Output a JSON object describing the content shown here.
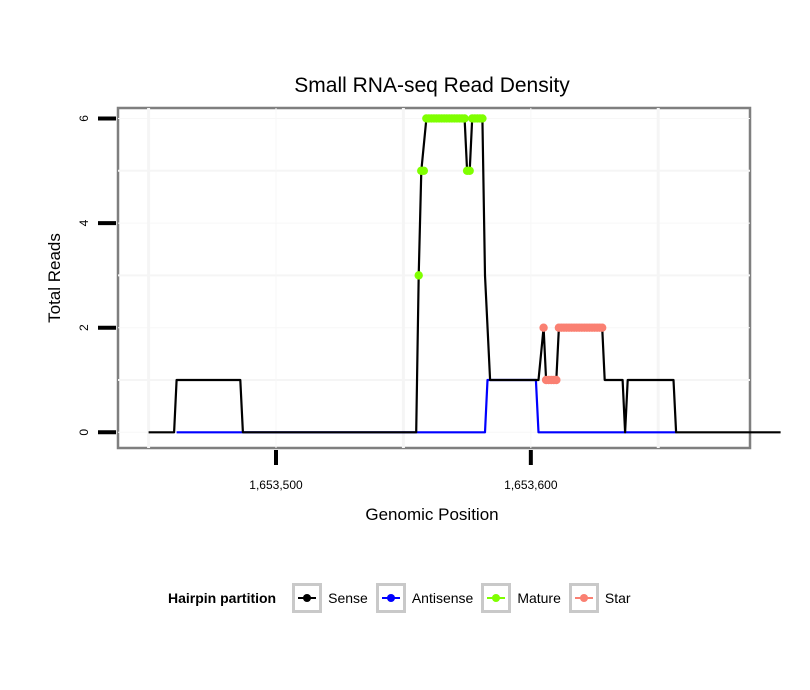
{
  "chart_data": {
    "type": "line",
    "title": "Small RNA-seq Read Density",
    "xlabel": "Genomic Position",
    "ylabel": "Total Reads",
    "xlim": [
      1653438,
      1653686
    ],
    "ylim": [
      -0.3,
      6.2
    ],
    "x_ticks": [
      1653500,
      1653600
    ],
    "x_tick_labels": [
      "1,653,500",
      "1,653,600"
    ],
    "y_ticks": [
      0,
      2,
      4,
      6
    ],
    "y_tick_labels": [
      "0",
      "2",
      "4",
      "6"
    ],
    "grid": true,
    "legend_position": "bottom",
    "legend_title": "Hairpin partition",
    "series": [
      {
        "name": "Sense",
        "color": "#000000",
        "points": [
          [
            1653450,
            0
          ],
          [
            1653460,
            0
          ],
          [
            1653461,
            1
          ],
          [
            1653486,
            1
          ],
          [
            1653487,
            0
          ],
          [
            1653555,
            0
          ],
          [
            1653556,
            3
          ],
          [
            1653557,
            5
          ],
          [
            1653559,
            6
          ],
          [
            1653574,
            6
          ],
          [
            1653575,
            5
          ],
          [
            1653576,
            5
          ],
          [
            1653577,
            6
          ],
          [
            1653581,
            6
          ],
          [
            1653582,
            3
          ],
          [
            1653584,
            1
          ],
          [
            1653603,
            1
          ],
          [
            1653605,
            2
          ],
          [
            1653606,
            1
          ],
          [
            1653610,
            1
          ],
          [
            1653611,
            2
          ],
          [
            1653628,
            2
          ],
          [
            1653629,
            1
          ],
          [
            1653636,
            1
          ],
          [
            1653637,
            0
          ],
          [
            1653638,
            1
          ],
          [
            1653656,
            1
          ],
          [
            1653657,
            0
          ],
          [
            1653698,
            0
          ]
        ]
      },
      {
        "name": "Antisense",
        "color": "#0000ff",
        "points": [
          [
            1653461,
            0
          ],
          [
            1653487,
            0
          ],
          [
            1653555,
            0
          ],
          [
            1653582,
            0
          ],
          [
            1653583,
            1
          ],
          [
            1653602,
            1
          ],
          [
            1653603,
            0
          ],
          [
            1653657,
            0
          ]
        ]
      },
      {
        "name": "Mature",
        "color": "#7fff00",
        "points": [
          [
            1653556,
            3
          ],
          [
            1653557,
            5
          ],
          [
            1653558,
            5
          ],
          [
            1653559,
            6
          ],
          [
            1653560,
            6
          ],
          [
            1653561,
            6
          ],
          [
            1653562,
            6
          ],
          [
            1653563,
            6
          ],
          [
            1653564,
            6
          ],
          [
            1653565,
            6
          ],
          [
            1653566,
            6
          ],
          [
            1653567,
            6
          ],
          [
            1653568,
            6
          ],
          [
            1653569,
            6
          ],
          [
            1653570,
            6
          ],
          [
            1653571,
            6
          ],
          [
            1653572,
            6
          ],
          [
            1653573,
            6
          ],
          [
            1653574,
            6
          ],
          [
            1653575,
            5
          ],
          [
            1653576,
            5
          ],
          [
            1653577,
            6
          ],
          [
            1653578,
            6
          ],
          [
            1653579,
            6
          ],
          [
            1653580,
            6
          ],
          [
            1653581,
            6
          ]
        ]
      },
      {
        "name": "Star",
        "color": "#fa8072",
        "points": [
          [
            1653605,
            2
          ],
          [
            1653606,
            1
          ],
          [
            1653607,
            1
          ],
          [
            1653608,
            1
          ],
          [
            1653609,
            1
          ],
          [
            1653610,
            1
          ],
          [
            1653611,
            2
          ],
          [
            1653612,
            2
          ],
          [
            1653613,
            2
          ],
          [
            1653614,
            2
          ],
          [
            1653615,
            2
          ],
          [
            1653616,
            2
          ],
          [
            1653617,
            2
          ],
          [
            1653618,
            2
          ],
          [
            1653619,
            2
          ],
          [
            1653620,
            2
          ],
          [
            1653621,
            2
          ],
          [
            1653622,
            2
          ],
          [
            1653623,
            2
          ],
          [
            1653624,
            2
          ],
          [
            1653625,
            2
          ],
          [
            1653626,
            2
          ],
          [
            1653627,
            2
          ],
          [
            1653628,
            2
          ]
        ]
      }
    ]
  }
}
